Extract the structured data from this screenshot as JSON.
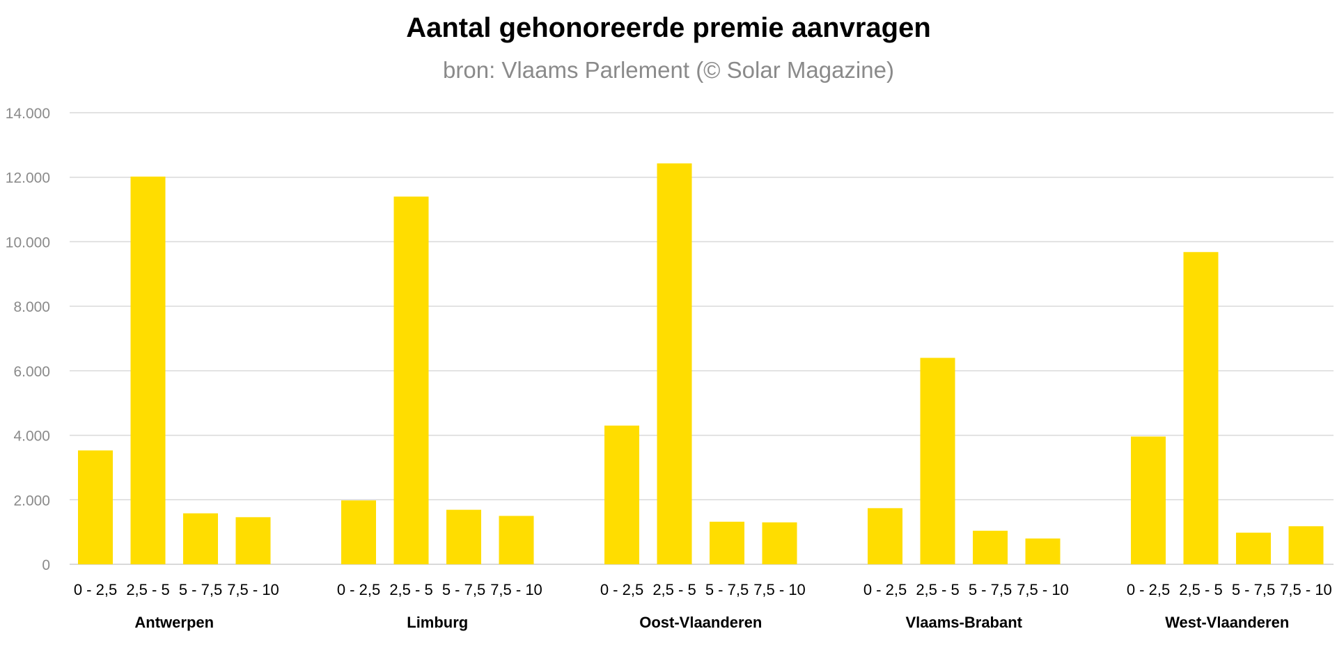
{
  "chart_data": {
    "type": "bar",
    "title": "Aantal gehonoreerde premie aanvragen",
    "subtitle": "bron: Vlaams Parlement (© Solar Magazine)",
    "groups": [
      "Antwerpen",
      "Limburg",
      "Oost-Vlaanderen",
      "Vlaams-Brabant",
      "West-Vlaanderen"
    ],
    "categories": [
      "0 - 2,5",
      "2,5 - 5",
      "5 - 7,5",
      "7,5 - 10"
    ],
    "values": [
      [
        3530,
        12020,
        1580,
        1460
      ],
      [
        1980,
        11400,
        1690,
        1500
      ],
      [
        4300,
        12430,
        1320,
        1300
      ],
      [
        1740,
        6400,
        1040,
        800
      ],
      [
        3960,
        9680,
        980,
        1180
      ]
    ],
    "ylim": [
      0,
      14000
    ],
    "yticks": [
      0,
      2000,
      4000,
      6000,
      8000,
      10000,
      12000,
      14000
    ],
    "ytick_labels": [
      "0",
      "2.000",
      "4.000",
      "6.000",
      "8.000",
      "10.000",
      "12.000",
      "14.000"
    ],
    "grid": true,
    "legend": "none",
    "bar_color": "#FFDD00",
    "grid_color": "#d9d9d9"
  }
}
